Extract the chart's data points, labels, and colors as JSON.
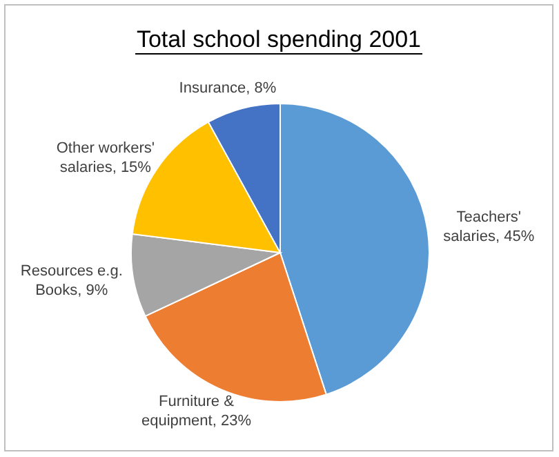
{
  "chart_data": {
    "type": "pie",
    "title": "Total school spending 2001",
    "categories": [
      "Teachers' salaries",
      "Furniture & equipment",
      "Resources e.g. Books",
      "Other workers' salaries",
      "Insurance"
    ],
    "values": [
      45,
      23,
      9,
      15,
      8
    ],
    "value_labels": [
      "45%",
      "23%",
      "9%",
      "15%",
      "8%"
    ],
    "colors": [
      "#5b9bd5",
      "#ed7d31",
      "#a5a5a5",
      "#ffc000",
      "#4472c4"
    ]
  }
}
